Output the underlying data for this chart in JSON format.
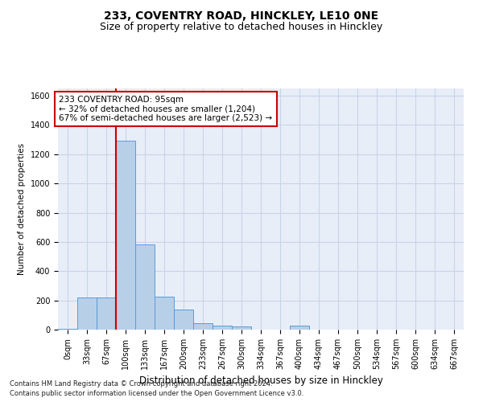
{
  "title1": "233, COVENTRY ROAD, HINCKLEY, LE10 0NE",
  "title2": "Size of property relative to detached houses in Hinckley",
  "xlabel": "Distribution of detached houses by size in Hinckley",
  "ylabel": "Number of detached properties",
  "bar_labels": [
    "0sqm",
    "33sqm",
    "67sqm",
    "100sqm",
    "133sqm",
    "167sqm",
    "200sqm",
    "233sqm",
    "267sqm",
    "300sqm",
    "334sqm",
    "367sqm",
    "400sqm",
    "434sqm",
    "467sqm",
    "500sqm",
    "534sqm",
    "567sqm",
    "600sqm",
    "634sqm",
    "667sqm"
  ],
  "bar_values": [
    5,
    220,
    220,
    1290,
    585,
    225,
    135,
    45,
    25,
    20,
    0,
    0,
    30,
    0,
    0,
    0,
    0,
    0,
    0,
    0,
    0
  ],
  "bar_color": "#b8cfe8",
  "bar_edgecolor": "#5b9bd5",
  "vline_x": 2.5,
  "vline_color": "#cc0000",
  "annotation_text": "233 COVENTRY ROAD: 95sqm\n← 32% of detached houses are smaller (1,204)\n67% of semi-detached houses are larger (2,523) →",
  "annotation_box_edgecolor": "#cc0000",
  "annotation_box_facecolor": "#ffffff",
  "ylim": [
    0,
    1650
  ],
  "yticks": [
    0,
    200,
    400,
    600,
    800,
    1000,
    1200,
    1400,
    1600
  ],
  "grid_color": "#c8d4e8",
  "bg_color": "#e8eef8",
  "footer1": "Contains HM Land Registry data © Crown copyright and database right 2024.",
  "footer2": "Contains public sector information licensed under the Open Government Licence v3.0.",
  "title1_fontsize": 10,
  "title2_fontsize": 9,
  "xlabel_fontsize": 8.5,
  "ylabel_fontsize": 7.5,
  "tick_fontsize": 7,
  "annotation_fontsize": 7.5,
  "footer_fontsize": 6
}
